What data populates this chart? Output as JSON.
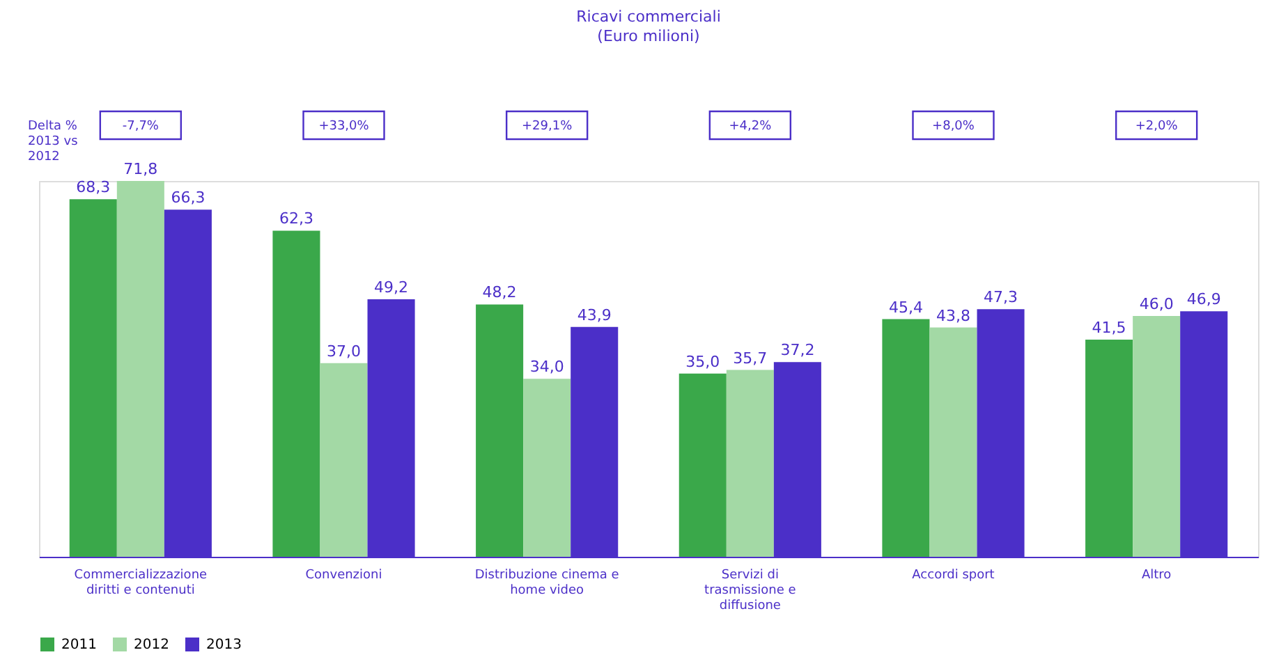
{
  "chart_data": {
    "type": "bar",
    "title": "Ricavi commerciali",
    "subtitle": "(Euro milioni)",
    "categories": [
      "Commercializzazione diritti e contenuti",
      "Convenzioni",
      "Distribuzione cinema e home video",
      "Servizi di trasmissione e diffusione",
      "Accordi sport",
      "Altro"
    ],
    "series": [
      {
        "name": "2011",
        "color": "#3aa84a",
        "values": [
          68.3,
          62.3,
          48.2,
          35.0,
          45.4,
          41.5
        ],
        "value_labels": [
          "68,3",
          "62,3",
          "48,2",
          "35,0",
          "45,4",
          "41,5"
        ]
      },
      {
        "name": "2012",
        "color": "#a3d9a5",
        "values": [
          71.8,
          37.0,
          34.0,
          35.7,
          43.8,
          46.0
        ],
        "value_labels": [
          "71,8",
          "37,0",
          "34,0",
          "35,7",
          "43,8",
          "46,0"
        ]
      },
      {
        "name": "2013",
        "color": "#4b2fc8",
        "values": [
          66.3,
          49.2,
          43.9,
          37.2,
          47.3,
          46.9
        ],
        "value_labels": [
          "66,3",
          "49,2",
          "43,9",
          "37,2",
          "47,3",
          "46,9"
        ]
      }
    ],
    "legend": "bottom",
    "annotations": [
      "Delta % 2013 vs 2012",
      "-7,7%",
      "+33,0%",
      "+29,1%",
      "+4,2%",
      "+8,0%",
      "+2,0%"
    ]
  }
}
